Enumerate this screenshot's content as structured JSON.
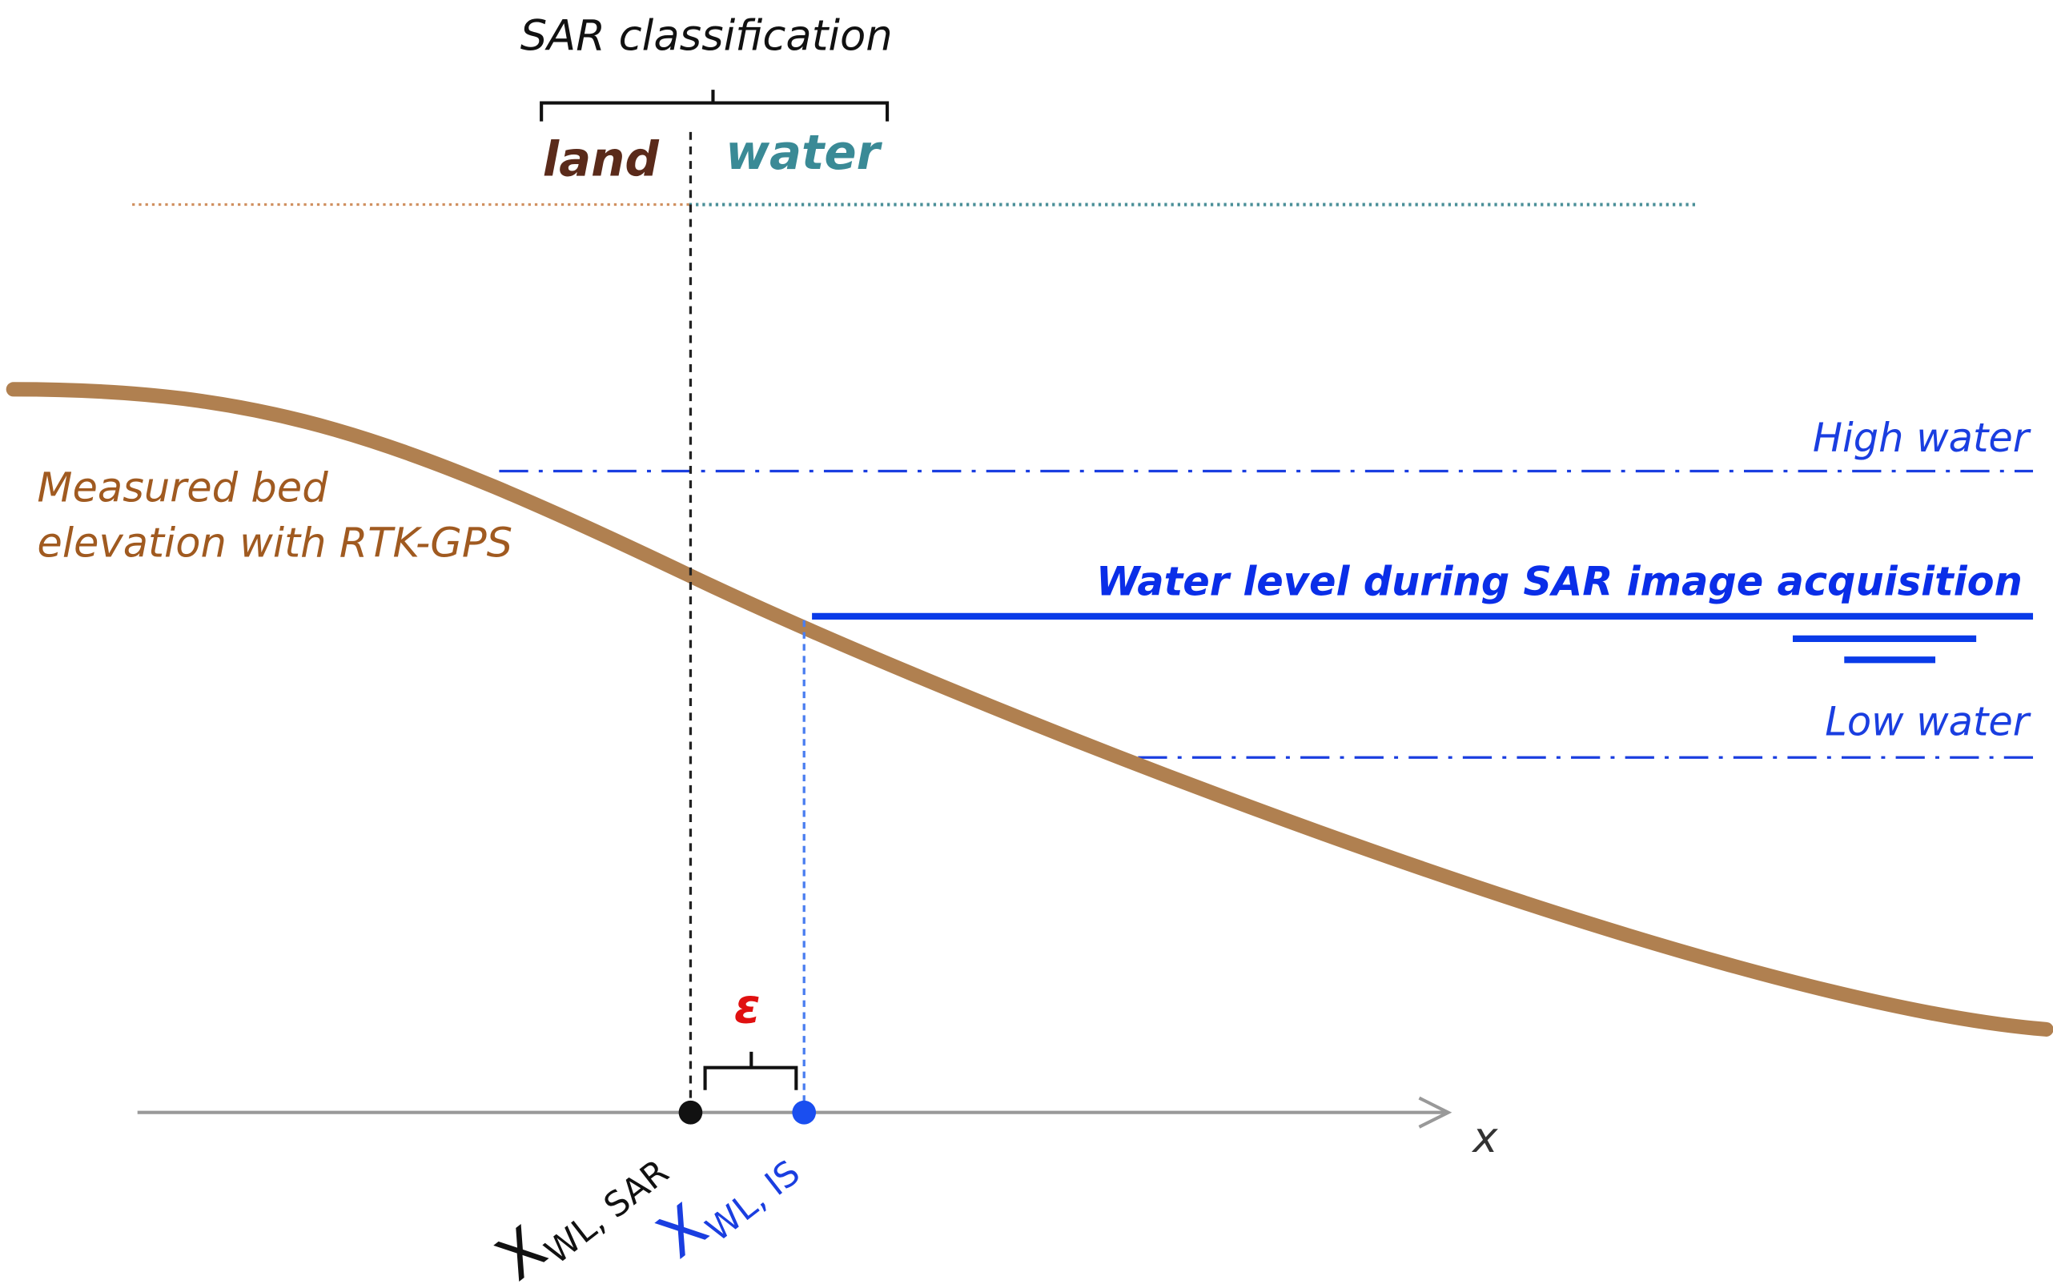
{
  "classification": {
    "title": "SAR classification",
    "land": "land",
    "water": "water"
  },
  "bed_label": {
    "line1": "Measured bed",
    "line2": "elevation with RTK-GPS"
  },
  "levels": {
    "high": "High water",
    "sar": "Water level during SAR image acquisition",
    "low": "Low water"
  },
  "epsilon": "ε",
  "axis_label": "x",
  "x_wl_sar": {
    "symbol": "X",
    "subscript": "WL, SAR"
  },
  "x_wl_is": {
    "symbol": "X",
    "subscript": "WL, IS"
  }
}
